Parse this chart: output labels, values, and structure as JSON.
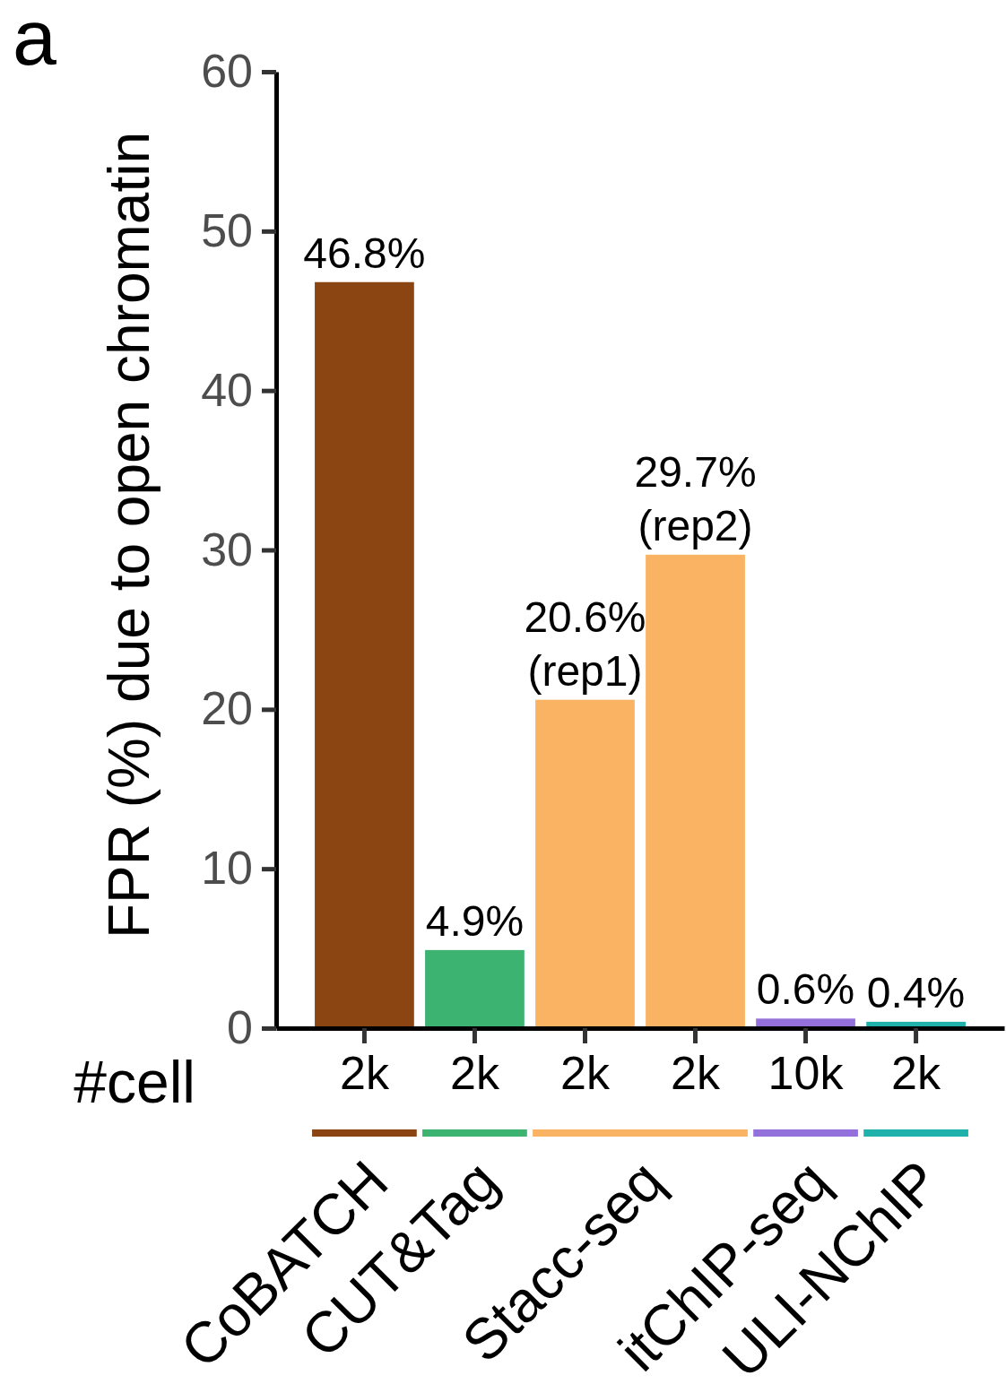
{
  "chart_data": {
    "type": "bar",
    "title": "a",
    "ylabel": "FPR (%) due to open chromatin",
    "xlabel": "#cell",
    "categories": [
      "2k",
      "2k",
      "2k",
      "2k",
      "10k",
      "2k"
    ],
    "values": [
      46.8,
      4.9,
      20.6,
      29.7,
      0.6,
      0.4
    ],
    "colors": [
      "#8b4513",
      "#3cb371",
      "#fab363",
      "#fab363",
      "#9370db",
      "#20b2aa"
    ],
    "value_labels": [
      "46.8%",
      "4.9%",
      "20.6%\n(rep1)",
      "29.7%\n(rep2)",
      "0.6%",
      "0.4%"
    ],
    "ylim": [
      0,
      60
    ],
    "yticks": [
      0,
      10,
      20,
      30,
      40,
      50,
      60
    ],
    "annotations": [
      "CoBATCH",
      "CUT&Tag",
      "Stacc-seq",
      "itChIP-seq",
      "ULI-NChIP"
    ]
  }
}
